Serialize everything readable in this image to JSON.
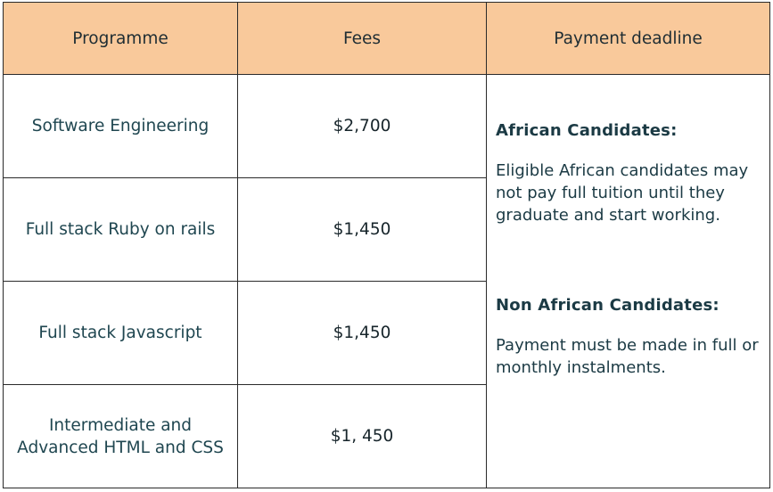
{
  "table": {
    "headers": {
      "programme": "Programme",
      "fees": "Fees",
      "deadline": "Payment deadline"
    },
    "rows": [
      {
        "programme": "Software Engineering",
        "fee": "$2,700"
      },
      {
        "programme": "Full stack Ruby on rails",
        "fee": "$1,450"
      },
      {
        "programme": "Full stack Javascript",
        "fee": "$1,450"
      },
      {
        "programme": "Intermediate and Advanced HTML and CSS",
        "fee": "$1, 450"
      }
    ],
    "deadline_note": {
      "african_heading": "African Candidates:",
      "african_text": "Eligible African candidates may not pay full tuition until they graduate and start working.",
      "non_african_heading": "Non African Candidates:",
      "non_african_text": "Payment must be made in full or monthly instalments."
    }
  },
  "colors": {
    "header_background": "#f9c99b",
    "border": "#2a2a2a",
    "programme_text": "#1f4650"
  }
}
